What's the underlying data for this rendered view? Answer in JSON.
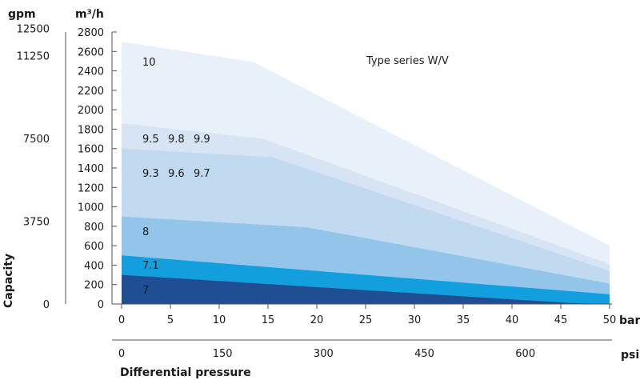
{
  "chart_data": {
    "type": "area",
    "title": "Type series W/V",
    "x_primary": {
      "unit": "bar",
      "range": [
        0,
        50
      ],
      "ticks": [
        0,
        5,
        10,
        15,
        20,
        25,
        30,
        35,
        40,
        45,
        50
      ]
    },
    "x_secondary": {
      "unit": "psi",
      "ticks": [
        0,
        150,
        300,
        450,
        600
      ]
    },
    "xlabel": "Differential pressure",
    "y_primary": {
      "unit": "m³/h",
      "range": [
        0,
        2800
      ],
      "ticks": [
        0,
        200,
        400,
        600,
        800,
        1000,
        1200,
        1400,
        1600,
        1800,
        2000,
        2200,
        2400,
        2600,
        2800
      ]
    },
    "y_secondary": {
      "unit": "gpm",
      "ticks": [
        0,
        3750,
        7500,
        11250,
        12500
      ]
    },
    "ylabel": "Capacity",
    "grid": false,
    "series": [
      {
        "name": "10",
        "color": "#e8f0fa",
        "x": [
          0,
          13.5,
          50
        ],
        "y": [
          2700,
          2490,
          600
        ]
      },
      {
        "name": "9.5 9.8 9.9",
        "color": "#d6e4f4",
        "x": [
          0,
          14.5,
          50
        ],
        "y": [
          1860,
          1700,
          410
        ]
      },
      {
        "name": "9.3 9.6 9.7",
        "color": "#c1daf0",
        "x": [
          0,
          15.5,
          50
        ],
        "y": [
          1600,
          1510,
          340
        ]
      },
      {
        "name": "8",
        "color": "#93c4ea",
        "x": [
          0,
          19,
          50
        ],
        "y": [
          900,
          790,
          210
        ]
      },
      {
        "name": "7.1",
        "color": "#139fde",
        "x": [
          0,
          50
        ],
        "y": [
          500,
          100
        ]
      },
      {
        "name": "7",
        "color": "#1f4e92",
        "x": [
          0,
          46,
          50
        ],
        "y": [
          300,
          10,
          0
        ]
      }
    ]
  }
}
